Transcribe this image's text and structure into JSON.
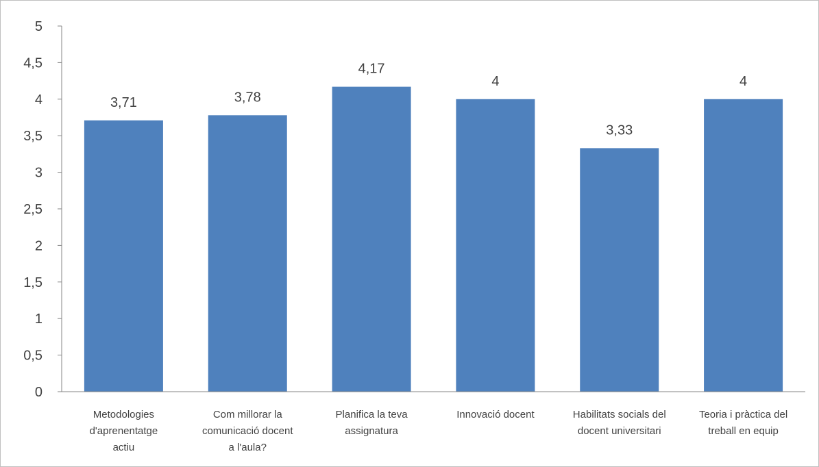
{
  "chart_data": {
    "type": "bar",
    "categories": [
      [
        "Metodologies",
        "d'aprenentatge",
        "actiu"
      ],
      [
        "Com millorar la",
        "comunicació docent",
        "a l'aula?"
      ],
      [
        "Planifica la teva",
        "assignatura"
      ],
      [
        "Innovació docent"
      ],
      [
        "Habilitats socials del",
        "docent universitari"
      ],
      [
        "Teoria i pràctica del",
        "treball en equip"
      ]
    ],
    "values": [
      3.71,
      3.78,
      4.17,
      4,
      3.33,
      4
    ],
    "data_labels": [
      "3,71",
      "3,78",
      "4,17",
      "4",
      "3,33",
      "4"
    ],
    "ylim": [
      0,
      5
    ],
    "yticks": [
      0,
      0.5,
      1,
      1.5,
      2,
      2.5,
      3,
      3.5,
      4,
      4.5,
      5
    ],
    "ytick_labels": [
      "0",
      "0,5",
      "1",
      "1,5",
      "2",
      "2,5",
      "3",
      "3,5",
      "4",
      "4,5",
      "5"
    ],
    "title": "",
    "xlabel": "",
    "ylabel": "",
    "grid": false,
    "legend": "none",
    "colors": {
      "bar": "#4f81bd",
      "axis": "#868686",
      "text": "#404040"
    }
  }
}
